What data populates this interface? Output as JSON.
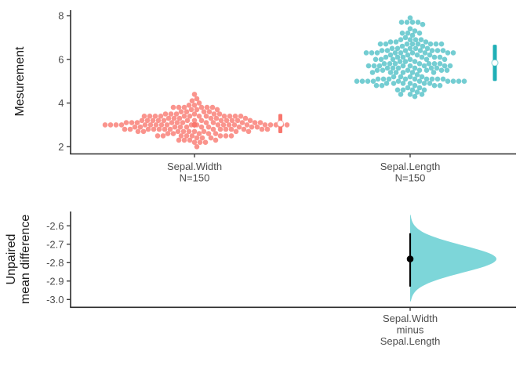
{
  "figure": {
    "background": "#ffffff",
    "axis_color": "#2b2b2b",
    "tick_label_color": "#4d4d4d",
    "title_color": "#1a1a1a"
  },
  "chart_data": [
    {
      "type": "scatter",
      "subtype": "beeswarm-with-gapped-mean-sd-bars",
      "title": "",
      "xlabel": "",
      "ylabel": "Mesurement",
      "yticks": [
        2,
        4,
        6,
        8
      ],
      "ylim": [
        1.7,
        8.3
      ],
      "grid": false,
      "legend": "none",
      "groups": [
        {
          "label": "Sepal.Width",
          "n_label": "N=150",
          "n": 150,
          "color": "#F8766D",
          "mean": 3.06,
          "sd": 0.44,
          "values": [
            3.5,
            3.0,
            3.2,
            3.1,
            3.6,
            3.9,
            3.4,
            3.4,
            2.9,
            3.1,
            3.7,
            3.4,
            3.0,
            3.0,
            4.0,
            4.4,
            3.9,
            3.5,
            3.8,
            3.8,
            3.4,
            3.7,
            3.6,
            3.3,
            3.4,
            3.0,
            3.4,
            3.5,
            3.4,
            3.2,
            3.1,
            3.4,
            4.1,
            4.2,
            3.1,
            3.2,
            3.5,
            3.6,
            3.0,
            3.4,
            3.5,
            2.3,
            3.2,
            3.5,
            3.8,
            3.0,
            3.8,
            3.2,
            3.7,
            3.3,
            3.2,
            3.2,
            3.1,
            2.3,
            2.8,
            2.8,
            3.3,
            2.4,
            2.9,
            2.7,
            2.0,
            3.0,
            2.2,
            2.9,
            2.9,
            3.1,
            3.0,
            2.7,
            2.2,
            2.5,
            3.2,
            2.8,
            2.5,
            2.8,
            2.9,
            3.0,
            2.8,
            3.0,
            2.9,
            2.6,
            2.4,
            2.4,
            2.7,
            2.7,
            3.0,
            3.4,
            3.1,
            2.3,
            3.0,
            2.5,
            2.6,
            3.0,
            2.6,
            2.3,
            2.7,
            3.0,
            2.9,
            2.9,
            2.5,
            2.8,
            3.3,
            2.7,
            3.0,
            2.9,
            3.0,
            3.0,
            2.5,
            2.9,
            2.5,
            3.6,
            3.2,
            2.7,
            3.0,
            2.5,
            2.8,
            3.2,
            3.0,
            3.8,
            2.6,
            2.2,
            3.2,
            2.8,
            2.8,
            2.7,
            3.3,
            3.2,
            2.8,
            3.0,
            2.8,
            3.0,
            2.8,
            3.8,
            2.8,
            2.8,
            2.6,
            3.0,
            3.4,
            3.1,
            3.0,
            3.1,
            3.1,
            3.1,
            2.7,
            3.2,
            3.3,
            3.0,
            2.5,
            3.0,
            3.4,
            3.0
          ]
        },
        {
          "label": "Sepal.Length",
          "n_label": "N=150",
          "n": 150,
          "color": "#1FAFB6",
          "mean": 5.84,
          "sd": 0.83,
          "values": [
            5.1,
            4.9,
            4.7,
            4.6,
            5.0,
            5.4,
            4.6,
            5.0,
            4.4,
            4.9,
            5.4,
            4.8,
            4.8,
            4.3,
            5.8,
            5.7,
            5.4,
            5.1,
            5.7,
            5.1,
            5.4,
            5.1,
            4.6,
            5.1,
            4.8,
            5.0,
            5.0,
            5.2,
            5.2,
            4.7,
            4.8,
            5.4,
            5.2,
            5.5,
            4.9,
            5.0,
            5.5,
            4.9,
            4.4,
            5.1,
            5.0,
            4.5,
            4.4,
            5.0,
            5.1,
            4.8,
            5.1,
            4.6,
            5.3,
            5.0,
            7.0,
            6.4,
            6.9,
            5.5,
            6.5,
            5.7,
            6.3,
            4.9,
            6.6,
            5.2,
            5.0,
            5.9,
            6.0,
            6.1,
            5.6,
            6.7,
            5.6,
            5.8,
            6.2,
            5.6,
            5.9,
            6.1,
            6.3,
            6.1,
            6.4,
            6.6,
            6.8,
            6.7,
            6.0,
            5.7,
            5.5,
            5.5,
            5.8,
            6.0,
            5.4,
            6.0,
            6.7,
            6.3,
            5.6,
            5.5,
            5.5,
            6.1,
            5.8,
            5.0,
            5.6,
            5.7,
            5.7,
            6.2,
            5.1,
            5.7,
            6.3,
            5.8,
            7.1,
            6.3,
            6.5,
            7.6,
            4.9,
            7.3,
            6.7,
            7.2,
            6.5,
            6.4,
            6.8,
            5.7,
            5.8,
            6.4,
            6.5,
            7.7,
            7.7,
            6.0,
            6.9,
            5.6,
            7.7,
            6.3,
            6.7,
            7.2,
            6.2,
            6.1,
            6.4,
            7.2,
            7.4,
            7.9,
            6.4,
            6.3,
            6.1,
            7.7,
            6.3,
            6.4,
            6.0,
            6.9,
            6.7,
            6.9,
            5.8,
            6.8,
            6.7,
            6.7,
            6.3,
            6.5,
            6.2,
            5.9
          ]
        }
      ]
    },
    {
      "type": "area",
      "subtype": "half-violin-bootstrap-difference",
      "title": "",
      "ylabel_lines": [
        "Unpaired",
        "mean difference"
      ],
      "yticks": [
        -2.6,
        -2.7,
        -2.8,
        -2.9,
        -3.0
      ],
      "ylim": [
        -3.05,
        -2.52
      ],
      "grid": false,
      "xlabel_lines": [
        "Sepal.Width",
        "minus",
        "Sepal.Length"
      ],
      "effect": {
        "comparison": "Sepal.Width minus Sepal.Length",
        "mean_difference": -2.78,
        "ci_low": -2.93,
        "ci_high": -2.64,
        "violin_low": -3.01,
        "violin_high": -2.54,
        "violin_color": "#7DD6D9",
        "marker_color": "#000000"
      }
    }
  ]
}
